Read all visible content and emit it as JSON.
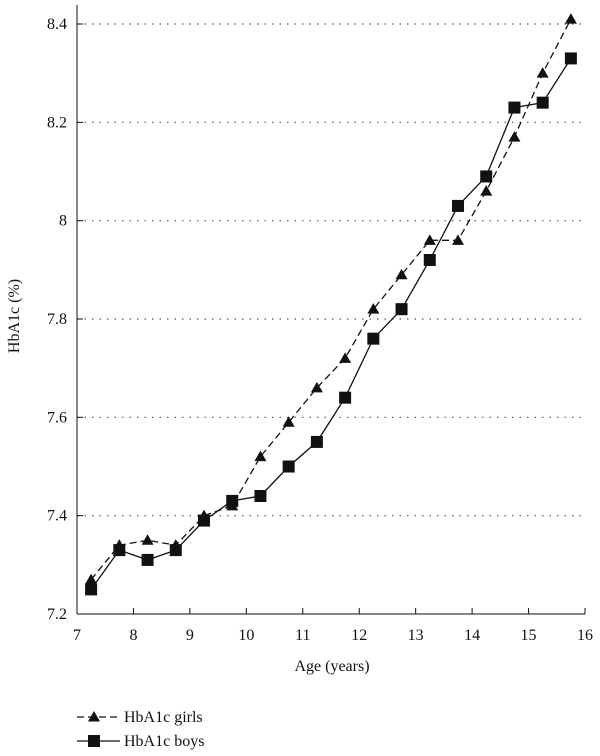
{
  "chart_data": {
    "type": "line",
    "xlabel": "Age (years)",
    "ylabel": "HbA1c (%)",
    "xlim": [
      7,
      16
    ],
    "ylim": [
      7.2,
      8.45
    ],
    "xticks": [
      7,
      8,
      9,
      10,
      11,
      12,
      13,
      14,
      15,
      16
    ],
    "xtick_labels": [
      "7",
      "8",
      "9",
      "10",
      "11",
      "12",
      "13",
      "14",
      "15",
      "16"
    ],
    "yticks": [
      7.2,
      7.4,
      7.6,
      7.8,
      8.0,
      8.2,
      8.4
    ],
    "ytick_labels": [
      "7.2",
      "7.4",
      "7.6",
      "7.8",
      "8",
      "8.2",
      "8.4"
    ],
    "grid": "horizontal dotted",
    "legend_position": "bottom-left, below plot",
    "series": [
      {
        "name": "HbA1c girls",
        "line_style": "dashed",
        "marker": "triangle",
        "color": "#111111",
        "x": [
          7.25,
          7.75,
          8.25,
          8.75,
          9.25,
          9.75,
          10.25,
          10.75,
          11.25,
          11.75,
          12.25,
          12.75,
          13.25,
          13.75,
          14.25,
          14.75,
          15.25,
          15.75
        ],
        "y": [
          7.27,
          7.34,
          7.35,
          7.34,
          7.4,
          7.42,
          7.52,
          7.59,
          7.66,
          7.72,
          7.82,
          7.89,
          7.96,
          7.96,
          8.06,
          8.17,
          8.3,
          8.41
        ]
      },
      {
        "name": "HbA1c boys",
        "line_style": "solid",
        "marker": "square",
        "color": "#111111",
        "x": [
          7.25,
          7.75,
          8.25,
          8.75,
          9.25,
          9.75,
          10.25,
          10.75,
          11.25,
          11.75,
          12.25,
          12.75,
          13.25,
          13.75,
          14.25,
          14.75,
          15.25,
          15.75
        ],
        "y": [
          7.25,
          7.33,
          7.31,
          7.33,
          7.39,
          7.43,
          7.44,
          7.5,
          7.55,
          7.64,
          7.76,
          7.82,
          7.92,
          8.03,
          8.09,
          8.23,
          8.24,
          8.33
        ]
      }
    ]
  }
}
